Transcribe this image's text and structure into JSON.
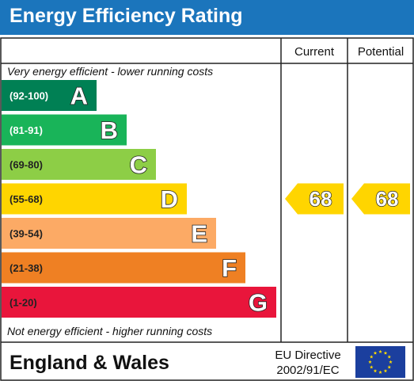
{
  "title": "Energy Efficiency Rating",
  "columns": {
    "current": "Current",
    "potential": "Potential"
  },
  "notes": {
    "top": "Very energy efficient - lower running costs",
    "bottom": "Not energy efficient - higher running costs"
  },
  "chart_data": {
    "type": "bar",
    "categories": [
      "(92-100)",
      "(81-91)",
      "(69-80)",
      "(55-68)",
      "(39-54)",
      "(21-38)",
      "(1-20)"
    ],
    "letters": [
      "A",
      "B",
      "C",
      "D",
      "E",
      "F",
      "G"
    ],
    "colors": [
      "#008054",
      "#19b459",
      "#8dce46",
      "#ffd500",
      "#fcaa65",
      "#ef8023",
      "#e9153b"
    ],
    "current": 68,
    "potential": 68,
    "score_color": "#ffd500"
  },
  "footer": {
    "region": "England & Wales",
    "directive_line1": "EU Directive",
    "directive_line2": "2002/91/EC",
    "flag_icon": "eu-flag-icon"
  }
}
